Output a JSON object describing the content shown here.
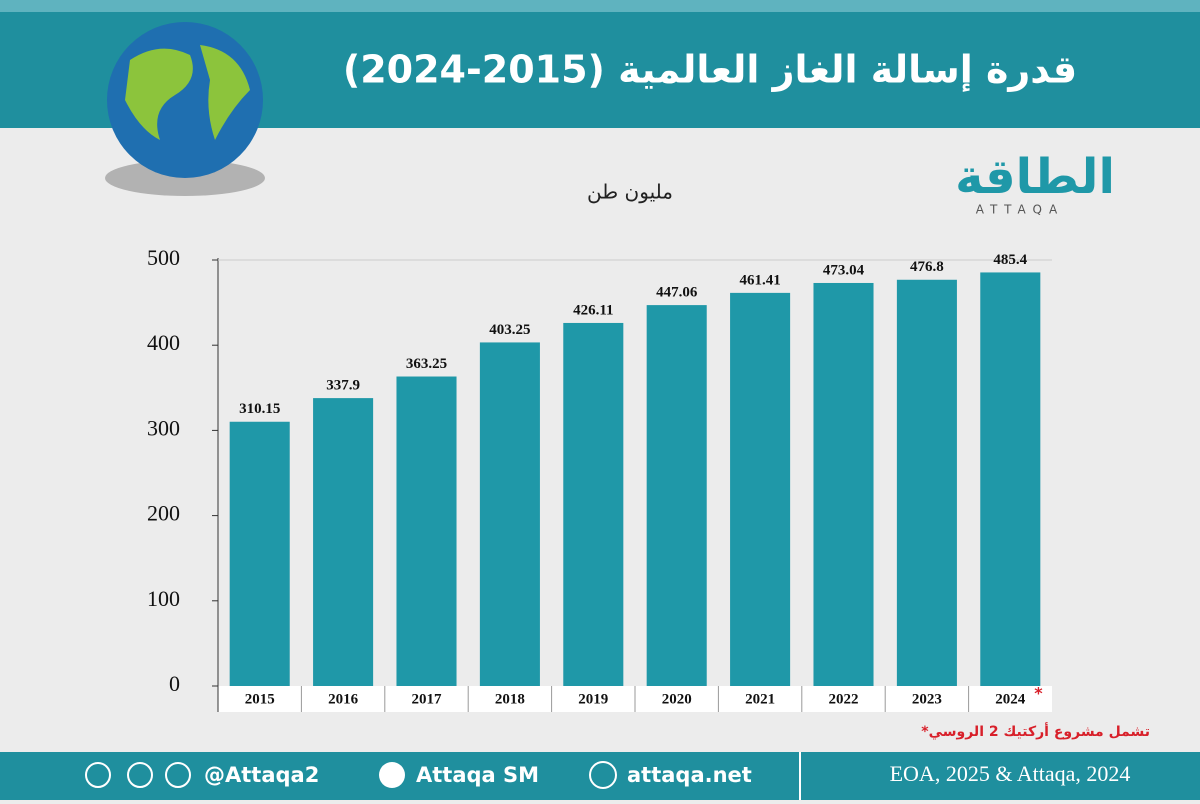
{
  "header": {
    "title": "قدرة إسالة الغاز العالمية (2015-2024)"
  },
  "logo": {
    "name": "الطاقة",
    "latin": "ATTAQA"
  },
  "chart_data": {
    "type": "bar",
    "y_label": "مليون طن",
    "categories": [
      "2015",
      "2016",
      "2017",
      "2018",
      "2019",
      "2020",
      "2021",
      "2022",
      "2023",
      "2024"
    ],
    "values": [
      310.15,
      337.9,
      363.25,
      403.25,
      426.11,
      447.06,
      461.41,
      473.04,
      476.8,
      485.4
    ],
    "color": "#1f98a8",
    "ylim": [
      0,
      500
    ],
    "yticks": [
      0,
      100,
      200,
      300,
      400,
      500
    ],
    "footnote_marker": "*",
    "footnote": "*تشمل مشروع أركتيك 2 الروسي"
  },
  "footer": {
    "twitter": "@Attaqa2",
    "youtube": "Attaqa SM",
    "website": "attaqa.net",
    "source": "EOA, 2025 & Attaqa, 2024"
  }
}
